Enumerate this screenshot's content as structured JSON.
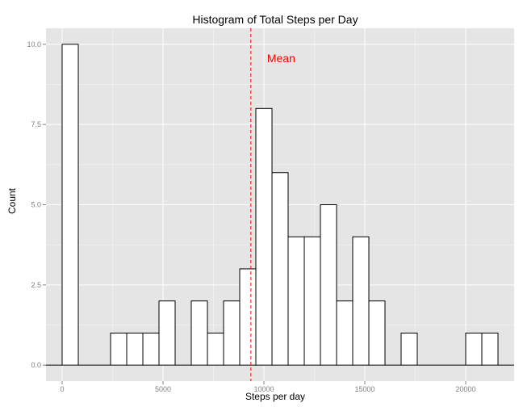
{
  "chart_data": {
    "type": "bar",
    "title": "Histogram of Total Steps per Day",
    "xlabel": "Steps per day",
    "ylabel": "Count",
    "xlim": [
      -800,
      22400
    ],
    "ylim": [
      -0.5,
      10.5
    ],
    "xticks": [
      0,
      5000,
      10000,
      15000,
      20000
    ],
    "xtick_labels": [
      "0",
      "5000",
      "10000",
      "15000",
      "20000"
    ],
    "yticks": [
      0,
      2.5,
      5,
      7.5,
      10
    ],
    "ytick_labels": [
      "0.0",
      "2.5",
      "5.0",
      "7.5",
      "10.0"
    ],
    "bin_width": 800,
    "bin_centers": [
      -400,
      400,
      1200,
      2000,
      2800,
      3600,
      4400,
      5200,
      6000,
      6800,
      7600,
      8400,
      9200,
      10000,
      10800,
      11600,
      12400,
      13200,
      14000,
      14800,
      15600,
      16400,
      17200,
      18000,
      18800,
      19600,
      20400,
      21200,
      22000
    ],
    "counts": [
      0,
      10,
      0,
      0,
      1,
      1,
      1,
      2,
      0,
      2,
      1,
      2,
      3,
      8,
      6,
      4,
      4,
      5,
      2,
      4,
      2,
      0,
      1,
      0,
      0,
      0,
      1,
      1,
      0
    ],
    "mean_line": {
      "x": 9354,
      "label": "Mean",
      "color": "#ff0000",
      "style": "dashed"
    },
    "grid": true,
    "colors": {
      "panel": "#e5e5e5",
      "grid": "#ffffff",
      "bar_fill": "#ffffff",
      "bar_stroke": "#000000"
    }
  }
}
